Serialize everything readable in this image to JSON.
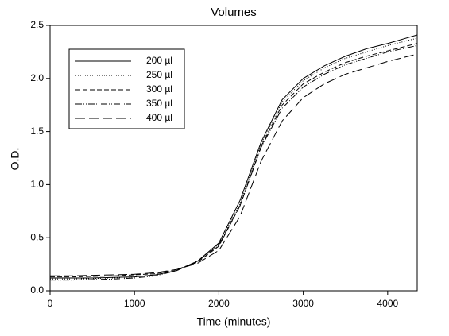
{
  "chart_data": {
    "type": "line",
    "title": "Volumes",
    "x_label": "Time (minutes)",
    "y_label": "O.D.",
    "x": [
      0,
      250,
      500,
      750,
      1000,
      1250,
      1500,
      1750,
      2000,
      2250,
      2500,
      2750,
      3000,
      3250,
      3500,
      3750,
      4000,
      4350
    ],
    "series": [
      {
        "name": "200 µl",
        "color": "#000000",
        "dash": "none",
        "values": [
          0.12,
          0.12,
          0.12,
          0.125,
          0.13,
          0.15,
          0.19,
          0.28,
          0.45,
          0.85,
          1.4,
          1.8,
          2.0,
          2.12,
          2.21,
          2.28,
          2.33,
          2.41
        ]
      },
      {
        "name": "250 µl",
        "color": "#000000",
        "dash": "1 2",
        "values": [
          0.11,
          0.11,
          0.115,
          0.12,
          0.13,
          0.15,
          0.19,
          0.28,
          0.44,
          0.82,
          1.38,
          1.78,
          1.98,
          2.1,
          2.19,
          2.25,
          2.31,
          2.38
        ]
      },
      {
        "name": "300 µl",
        "color": "#000000",
        "dash": "6 3",
        "values": [
          0.13,
          0.13,
          0.135,
          0.14,
          0.15,
          0.16,
          0.2,
          0.27,
          0.42,
          0.8,
          1.36,
          1.75,
          1.95,
          2.06,
          2.15,
          2.21,
          2.26,
          2.33
        ]
      },
      {
        "name": "350 µl",
        "color": "#000000",
        "dash": "8 2 1 2 1 2",
        "values": [
          0.1,
          0.1,
          0.105,
          0.11,
          0.12,
          0.14,
          0.19,
          0.28,
          0.43,
          0.8,
          1.35,
          1.72,
          1.92,
          2.04,
          2.13,
          2.19,
          2.25,
          2.31
        ]
      },
      {
        "name": "400 µl",
        "color": "#000000",
        "dash": "12 5",
        "values": [
          0.14,
          0.14,
          0.145,
          0.15,
          0.155,
          0.17,
          0.2,
          0.26,
          0.38,
          0.7,
          1.22,
          1.6,
          1.82,
          1.95,
          2.04,
          2.1,
          2.16,
          2.23
        ]
      }
    ],
    "xlim": [
      0,
      4350
    ],
    "ylim": [
      0,
      2.5
    ],
    "xticks": [
      0,
      1000,
      2000,
      3000,
      4000
    ],
    "yticks": [
      {
        "value": 0,
        "label": "0.0"
      },
      {
        "value": 0.5,
        "label": "0.5"
      },
      {
        "value": 1,
        "label": "1.0"
      },
      {
        "value": 1.5,
        "label": "1.5"
      },
      {
        "value": 2,
        "label": "2.0"
      },
      {
        "value": 2.5,
        "label": "2.5"
      }
    ],
    "legend": "upper left",
    "grid": false
  }
}
